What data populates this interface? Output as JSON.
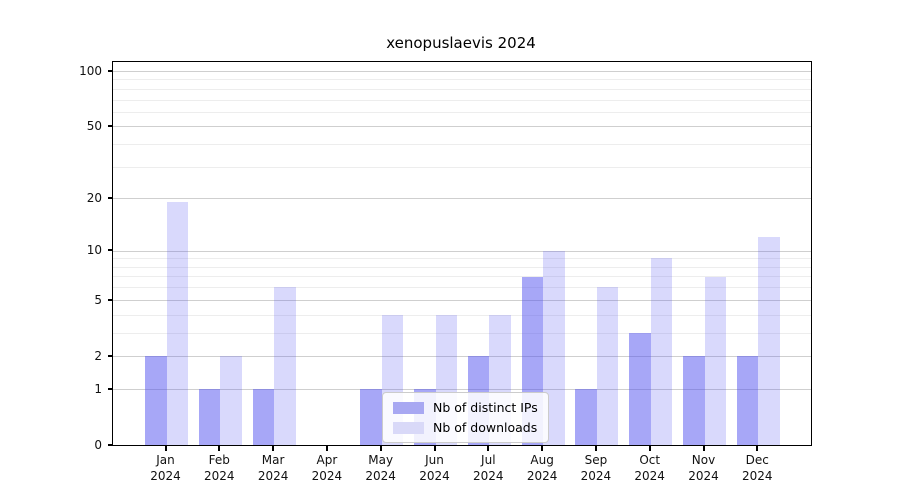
{
  "chart_data": {
    "type": "bar",
    "title": "xenopuslaevis 2024",
    "categories": [
      "Jan 2024",
      "Feb 2024",
      "Mar 2024",
      "Apr 2024",
      "May 2024",
      "Jun 2024",
      "Jul 2024",
      "Aug 2024",
      "Sep 2024",
      "Oct 2024",
      "Nov 2024",
      "Dec 2024"
    ],
    "series": [
      {
        "name": "Nb of distinct IPs",
        "color": "rgba(80,80,240,0.5)",
        "color_on_white": "#a8a8f2",
        "values": [
          2,
          1,
          1,
          0,
          1,
          1,
          2,
          7,
          1,
          3,
          2,
          2
        ]
      },
      {
        "name": "Nb of downloads",
        "color": "rgba(80,80,240,0.22)",
        "color_on_white": "#d9d9f8",
        "values": [
          19,
          2,
          6,
          0,
          4,
          4,
          4,
          10,
          6,
          9,
          7,
          12
        ]
      }
    ],
    "xlabel": "",
    "ylabel": "",
    "ylim": [
      0,
      100
    ],
    "yscale": "log(1+x)",
    "yticks": [
      0,
      1,
      2,
      5,
      10,
      20,
      50,
      100
    ],
    "y_minor_ticks": [
      3,
      4,
      6,
      7,
      8,
      9,
      30,
      40,
      60,
      70,
      80,
      90
    ],
    "grid": "horizontal, major and minor, behind translucent bars",
    "legend_position": "lower center"
  },
  "colors": {
    "grid_major": "#cfcfcf",
    "grid_minor": "#ededed",
    "spine": "#000000",
    "background": "#ffffff"
  }
}
